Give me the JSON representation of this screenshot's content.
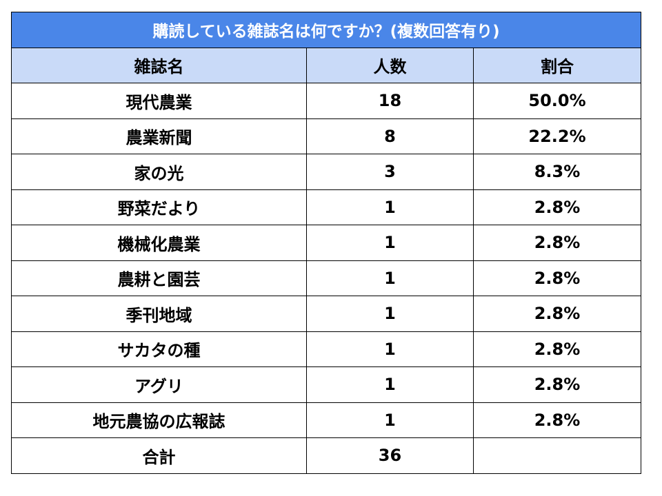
{
  "title": "購読している雑誌名は何ですか？(複数回答有り)",
  "colors": {
    "title_bg": "#4a86e8",
    "header_bg": "#c9daf8",
    "border": "#000000"
  },
  "headers": [
    "雑誌名",
    "人数",
    "割合"
  ],
  "rows": [
    {
      "name": "現代農業",
      "count": "18",
      "pct": "50.0%"
    },
    {
      "name": "農業新聞",
      "count": "8",
      "pct": "22.2%"
    },
    {
      "name": "家の光",
      "count": "3",
      "pct": "8.3%"
    },
    {
      "name": "野菜だより",
      "count": "1",
      "pct": "2.8%"
    },
    {
      "name": "機械化農業",
      "count": "1",
      "pct": "2.8%"
    },
    {
      "name": "農耕と園芸",
      "count": "1",
      "pct": "2.8%"
    },
    {
      "name": "季刊地域",
      "count": "1",
      "pct": "2.8%"
    },
    {
      "name": "サカタの種",
      "count": "1",
      "pct": "2.8%"
    },
    {
      "name": "アグリ",
      "count": "1",
      "pct": "2.8%"
    },
    {
      "name": "地元農協の広報誌",
      "count": "1",
      "pct": "2.8%"
    }
  ],
  "total": {
    "label": "合計",
    "count": "36",
    "pct": ""
  }
}
